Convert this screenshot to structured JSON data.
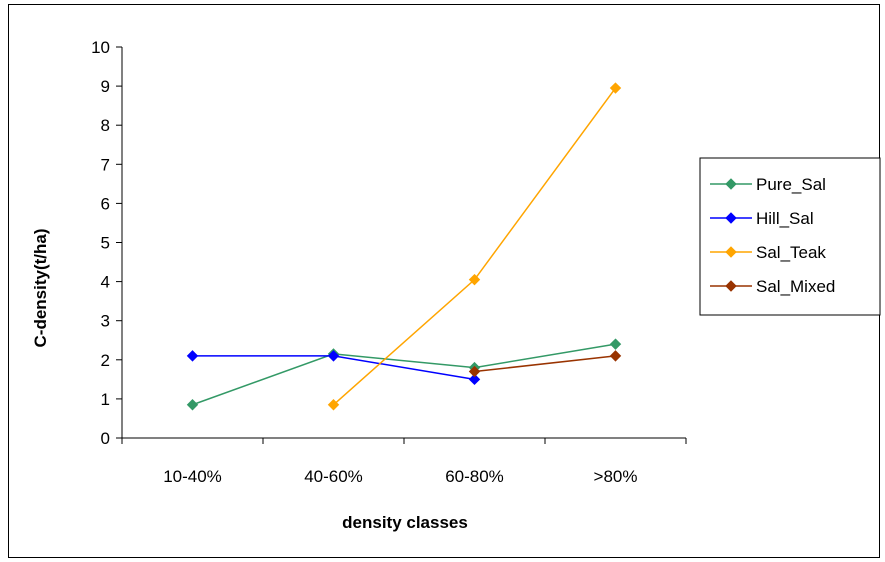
{
  "chart_data": {
    "type": "line",
    "title": "",
    "xlabel": "density classes",
    "ylabel": "C-density(t/ha)",
    "categories": [
      "10-40%",
      "40-60%",
      "60-80%",
      ">80%"
    ],
    "ylim": [
      0,
      10
    ],
    "yticks": [
      0,
      1,
      2,
      3,
      4,
      5,
      6,
      7,
      8,
      9,
      10
    ],
    "grid": false,
    "legend": "right",
    "series": [
      {
        "name": "Pure_Sal",
        "color": "#339966",
        "values": [
          0.85,
          2.15,
          1.8,
          2.4
        ]
      },
      {
        "name": "Hill_Sal",
        "color": "#0000FF",
        "values": [
          2.1,
          2.1,
          1.5,
          null
        ]
      },
      {
        "name": "Sal_Teak",
        "color": "#FFA500",
        "values": [
          null,
          0.85,
          4.05,
          8.95
        ]
      },
      {
        "name": "Sal_Mixed",
        "color": "#993300",
        "values": [
          null,
          null,
          1.7,
          2.1
        ]
      }
    ]
  }
}
